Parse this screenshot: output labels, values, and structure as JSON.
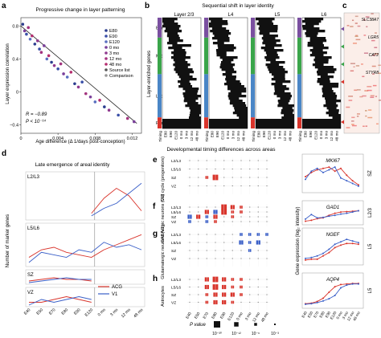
{
  "panel_a": {
    "letter": "a",
    "title": "Progressive change in layer patterning",
    "ylabel": "Layer expression correlation",
    "xlabel": "Age difference (Δ 1/days post-conception)",
    "yticks": [
      "0.8",
      "0.4",
      "0",
      "−0.4"
    ],
    "xticks": [
      "0",
      "0.004",
      "0.008",
      "0.012"
    ],
    "stat_r": "R = −0.89",
    "stat_p": "P < 10⁻¹⁴",
    "legend": [
      {
        "label": "E80",
        "color": "#2c3e8f"
      },
      {
        "label": "E90",
        "color": "#3a4fa8"
      },
      {
        "label": "E120",
        "color": "#5a6fc0"
      },
      {
        "label": "0 mo",
        "color": "#7a3f9a"
      },
      {
        "label": "3 mo",
        "color": "#8f3a8f"
      },
      {
        "label": "12 mo",
        "color": "#a3347f"
      },
      {
        "label": "48 mo",
        "color": "#b52d6f"
      },
      {
        "label": "Source list",
        "color": "#555555"
      },
      {
        "label": "Comparison",
        "color": "#999999"
      }
    ],
    "chart_data": {
      "type": "scatter",
      "xlabel": "Age difference (Δ 1/days post-conception)",
      "ylabel": "Layer expression correlation",
      "xlim": [
        0,
        0.013
      ],
      "ylim": [
        -0.5,
        0.9
      ],
      "points": [
        {
          "x": 0.0002,
          "y": 0.82,
          "c": "#2c3e8f"
        },
        {
          "x": 0.0004,
          "y": 0.74,
          "c": "#7a3f9a"
        },
        {
          "x": 0.0006,
          "y": 0.7,
          "c": "#3a4fa8"
        },
        {
          "x": 0.0008,
          "y": 0.78,
          "c": "#a3347f"
        },
        {
          "x": 0.001,
          "y": 0.64,
          "c": "#5a6fc0"
        },
        {
          "x": 0.0012,
          "y": 0.68,
          "c": "#b52d6f"
        },
        {
          "x": 0.0015,
          "y": 0.58,
          "c": "#2c3e8f"
        },
        {
          "x": 0.0018,
          "y": 0.62,
          "c": "#8f3a8f"
        },
        {
          "x": 0.002,
          "y": 0.52,
          "c": "#3a4fa8"
        },
        {
          "x": 0.0022,
          "y": 0.48,
          "c": "#a3347f"
        },
        {
          "x": 0.0025,
          "y": 0.56,
          "c": "#7a3f9a"
        },
        {
          "x": 0.0028,
          "y": 0.4,
          "c": "#5a6fc0"
        },
        {
          "x": 0.003,
          "y": 0.44,
          "c": "#b52d6f"
        },
        {
          "x": 0.0033,
          "y": 0.36,
          "c": "#2c3e8f"
        },
        {
          "x": 0.0036,
          "y": 0.32,
          "c": "#8f3a8f"
        },
        {
          "x": 0.004,
          "y": 0.28,
          "c": "#3a4fa8"
        },
        {
          "x": 0.0043,
          "y": 0.34,
          "c": "#a3347f"
        },
        {
          "x": 0.0046,
          "y": 0.22,
          "c": "#7a3f9a"
        },
        {
          "x": 0.005,
          "y": 0.18,
          "c": "#5a6fc0"
        },
        {
          "x": 0.0054,
          "y": 0.24,
          "c": "#b52d6f"
        },
        {
          "x": 0.0058,
          "y": 0.1,
          "c": "#2c3e8f"
        },
        {
          "x": 0.0062,
          "y": 0.06,
          "c": "#8f3a8f"
        },
        {
          "x": 0.0066,
          "y": 0.12,
          "c": "#3a4fa8"
        },
        {
          "x": 0.007,
          "y": -0.02,
          "c": "#a3347f"
        },
        {
          "x": 0.0075,
          "y": -0.06,
          "c": "#7a3f9a"
        },
        {
          "x": 0.008,
          "y": -0.12,
          "c": "#5a6fc0"
        },
        {
          "x": 0.0085,
          "y": -0.1,
          "c": "#b52d6f"
        },
        {
          "x": 0.009,
          "y": -0.18,
          "c": "#2c3e8f"
        },
        {
          "x": 0.0095,
          "y": -0.22,
          "c": "#8f3a8f"
        },
        {
          "x": 0.0105,
          "y": -0.28,
          "c": "#3a4fa8"
        },
        {
          "x": 0.0115,
          "y": -0.32,
          "c": "#a3347f"
        },
        {
          "x": 0.0122,
          "y": -0.36,
          "c": "#7a3f9a"
        }
      ],
      "fit": [
        [
          0,
          0.8
        ],
        [
          0.0125,
          -0.38
        ]
      ]
    }
  },
  "panel_b": {
    "letter": "b",
    "title": "Sequential shift in layer identity",
    "ylabel": "Layer-enriched genes",
    "categories": [
      "Early",
      "Middle",
      "Late",
      "Persistent"
    ],
    "category_colors": [
      "#7a4fa0",
      "#3aa54a",
      "#4a86c6",
      "#d9342b"
    ],
    "layers": [
      "Layer 2/3",
      "L4",
      "L5",
      "L6"
    ],
    "xticks": [
      "Timing",
      "E80",
      "E90",
      "E120",
      "0 mo",
      "3 mo",
      "12 mo",
      "48 mo"
    ]
  },
  "panel_c": {
    "letter": "c",
    "genes": [
      "SLC38A7",
      "LGR5",
      "CAT2",
      "STYR8"
    ]
  },
  "panel_d": {
    "letter": "d",
    "title": "Late emergence of areal identity",
    "ylabel": "Number of marker genes",
    "row_labels": [
      "L2/L3",
      "L5/L6",
      "SZ",
      "VZ"
    ],
    "xticks": [
      "E40",
      "E50",
      "E70",
      "E80",
      "E90",
      "E120",
      "0 mo",
      "3 mo",
      "12 mo",
      "48 mo"
    ],
    "legend": [
      {
        "label": "ACG",
        "color": "#d9342b"
      },
      {
        "label": "V1",
        "color": "#3a5fc8"
      }
    ],
    "chart_data": {
      "type": "line",
      "x": [
        "E40",
        "E50",
        "E70",
        "E80",
        "E90",
        "E120",
        "0 mo",
        "3 mo",
        "12 mo",
        "48 mo"
      ],
      "series": [
        {
          "name": "ACG",
          "panel": "L2/L3",
          "values": [
            null,
            null,
            null,
            null,
            null,
            2,
            8,
            12,
            9,
            3
          ]
        },
        {
          "name": "V1",
          "panel": "L2/L3",
          "values": [
            null,
            null,
            null,
            null,
            null,
            1,
            4,
            6,
            10,
            14
          ]
        },
        {
          "name": "ACG",
          "panel": "L5/L6",
          "values": [
            3,
            6,
            7,
            5,
            4,
            3,
            6,
            8,
            10,
            12
          ]
        },
        {
          "name": "V1",
          "panel": "L5/L6",
          "values": [
            1,
            5,
            4,
            3,
            6,
            5,
            9,
            7,
            8,
            6
          ]
        },
        {
          "name": "ACG",
          "panel": "SZ",
          "values": [
            1,
            2,
            3,
            2,
            2,
            1,
            null,
            null,
            null,
            null
          ]
        },
        {
          "name": "V1",
          "panel": "SZ",
          "values": [
            0,
            1,
            2,
            3,
            2,
            2,
            null,
            null,
            null,
            null
          ]
        },
        {
          "name": "ACG",
          "panel": "VZ",
          "values": [
            1,
            1,
            2,
            3,
            2,
            1,
            null,
            null,
            null,
            null
          ]
        },
        {
          "name": "V1",
          "panel": "VZ",
          "values": [
            0,
            2,
            1,
            2,
            3,
            2,
            null,
            null,
            null,
            null
          ]
        }
      ]
    }
  },
  "panel_e": {
    "letter": "e",
    "title": "Developmental timing differences across areas",
    "row_label": "Cell cycle (progenitors)",
    "gene": "MKI67",
    "region": "SZ"
  },
  "panel_f": {
    "letter": "f",
    "row_label": "GABAergic neurons (V1)",
    "gene": "GAD1",
    "region": "L2/3"
  },
  "panel_g": {
    "letter": "g",
    "row_label": "Glutamatergic neurons (V1)",
    "gene": "NGEF",
    "region": "L5"
  },
  "panel_h": {
    "letter": "h",
    "row_label": "Astrocytes",
    "gene": "AQP4",
    "region": "L5"
  },
  "dot_rows": [
    "L2/L3",
    "L5/L6",
    "SZ",
    "VZ"
  ],
  "dot_xticks": [
    "E40",
    "E50",
    "E70",
    "E80",
    "E90",
    "E120",
    "0 mo",
    "3 mo",
    "12 mo",
    "48 mo"
  ],
  "line_ylabel": "Gene expression (log₂ intensity)",
  "line_xticks": [
    "E40",
    "E50",
    "E70",
    "E80",
    "E90",
    "E120",
    "0 mo",
    "3 mo",
    "12 mo",
    "48 mo"
  ],
  "pvalue": {
    "label": "P value",
    "levels": [
      "10⁻³⁰",
      "10⁻¹²",
      "10⁻⁶",
      "10⁻³"
    ]
  },
  "colors": {
    "acg": "#d9342b",
    "v1": "#3a5fc8"
  }
}
